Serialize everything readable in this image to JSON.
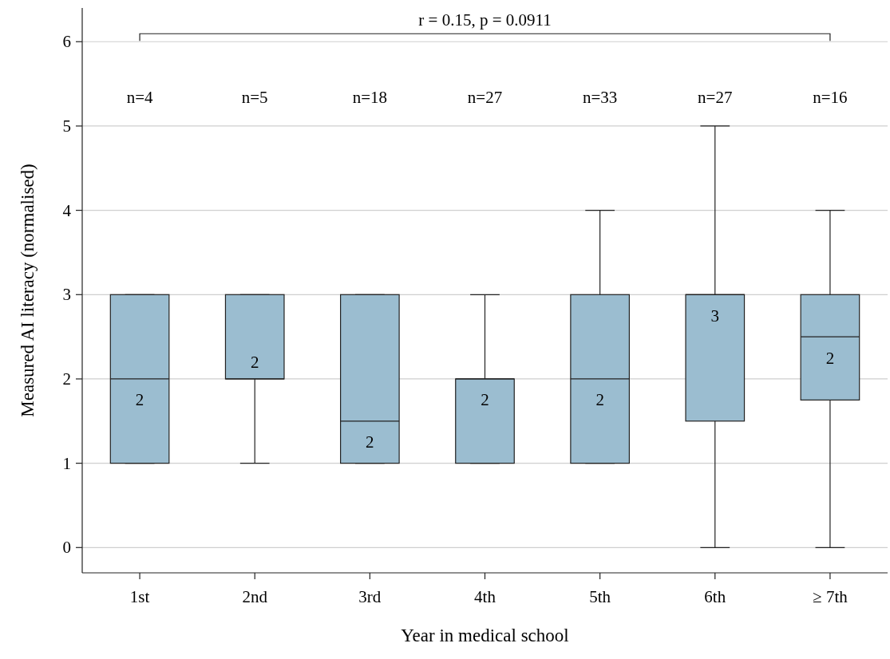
{
  "chart_data": {
    "type": "box",
    "xlabel": "Year in medical school",
    "ylabel": "Measured AI literacy (normalised)",
    "categories": [
      "1st",
      "2nd",
      "3rd",
      "4th",
      "5th",
      "6th",
      "≥ 7th"
    ],
    "color": "#9bbdd0",
    "boxes": [
      {
        "low": 1,
        "q1": 1,
        "median": 2,
        "q3": 3,
        "high": 3
      },
      {
        "low": 1,
        "q1": 2,
        "median": 2,
        "q3": 3,
        "high": 3
      },
      {
        "low": 1,
        "q1": 1,
        "median": 1.5,
        "q3": 3,
        "high": 3
      },
      {
        "low": 1,
        "q1": 1,
        "median": 2,
        "q3": 2,
        "high": 3
      },
      {
        "low": 1,
        "q1": 1,
        "median": 2,
        "q3": 3,
        "high": 4
      },
      {
        "low": 0,
        "q1": 1.5,
        "median": 3,
        "q3": 3,
        "high": 5
      },
      {
        "low": 0,
        "q1": 1.75,
        "median": 2.5,
        "q3": 3,
        "high": 4
      }
    ],
    "ylim": [
      -0.3,
      6.4
    ],
    "yticks": [
      0,
      1,
      2,
      3,
      4,
      5,
      6
    ],
    "grid": "y",
    "annotations": [
      "r = 0.15, p = 0.0911",
      "n=4",
      "n=5",
      "n=18",
      "n=27",
      "n=33",
      "n=27",
      "n=16",
      "2",
      "2",
      "2",
      "2",
      "2",
      "3",
      "2"
    ]
  }
}
